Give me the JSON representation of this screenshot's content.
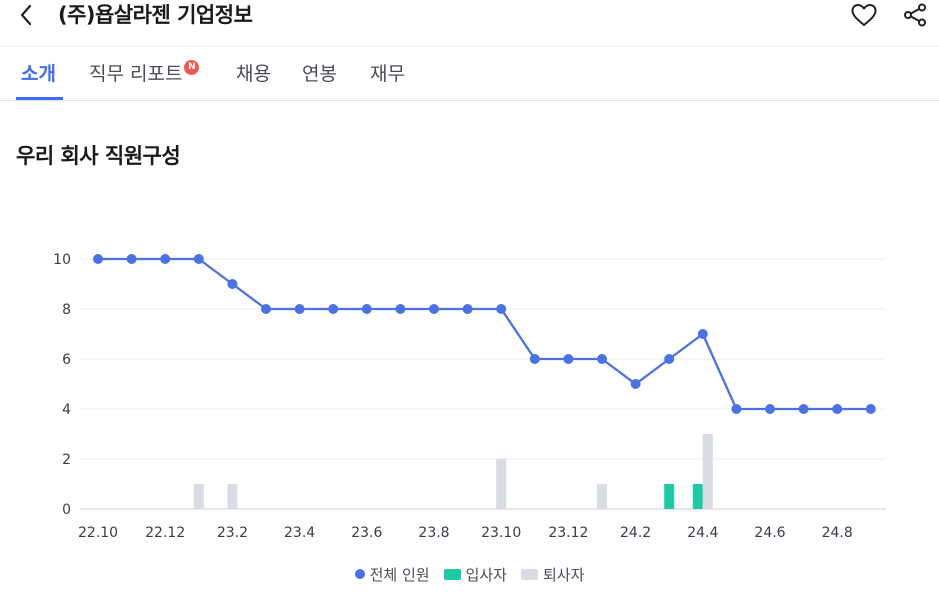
{
  "header": {
    "back_icon": "chevron-left-icon",
    "title": "(주)욥살라젠 기업정보",
    "favorite_icon": "heart-icon",
    "share_icon": "share-icon"
  },
  "tabs": [
    {
      "label": "소개",
      "active": true
    },
    {
      "label": "직무 리포트",
      "badge": "N"
    },
    {
      "label": "채용"
    },
    {
      "label": "연봉"
    },
    {
      "label": "재무"
    }
  ],
  "section": {
    "title": "우리 회사 직원구성"
  },
  "colors": {
    "accent": "#3d6bf5",
    "line": "#4a72e6",
    "hires": "#1ec9a5",
    "leavers": "#d9dce3",
    "badge": "#ef5a4c"
  },
  "chart_data": {
    "type": "line+bar",
    "x": [
      "22.10",
      "22.11",
      "22.12",
      "23.1",
      "23.2",
      "23.3",
      "23.4",
      "23.5",
      "23.6",
      "23.7",
      "23.8",
      "23.9",
      "23.10",
      "23.11",
      "23.12",
      "24.1",
      "24.2",
      "24.3",
      "24.4",
      "24.5",
      "24.6",
      "24.7",
      "24.8",
      "24.9"
    ],
    "x_tick_labels": [
      "22.10",
      "22.12",
      "23.2",
      "23.4",
      "23.6",
      "23.8",
      "23.10",
      "23.12",
      "24.2",
      "24.4",
      "24.6",
      "24.8"
    ],
    "y_ticks": [
      0,
      2,
      4,
      6,
      8,
      10
    ],
    "ylim": [
      0,
      10
    ],
    "grid": true,
    "legend_position": "bottom-center",
    "series": [
      {
        "name": "전체 인원",
        "type": "line",
        "values": [
          10,
          10,
          10,
          10,
          9,
          8,
          8,
          8,
          8,
          8,
          8,
          8,
          8,
          6,
          6,
          6,
          5,
          6,
          7,
          4,
          4,
          4,
          4,
          4
        ]
      },
      {
        "name": "입사자",
        "type": "bar",
        "values": [
          0,
          0,
          0,
          0,
          0,
          0,
          0,
          0,
          0,
          0,
          0,
          0,
          0,
          0,
          0,
          0,
          0,
          1,
          1,
          0,
          0,
          0,
          0,
          0
        ]
      },
      {
        "name": "퇴사자",
        "type": "bar",
        "values": [
          0,
          0,
          0,
          1,
          1,
          0,
          0,
          0,
          0,
          0,
          0,
          0,
          2,
          0,
          0,
          1,
          0,
          0,
          3,
          0,
          0,
          0,
          0,
          0
        ]
      }
    ]
  }
}
